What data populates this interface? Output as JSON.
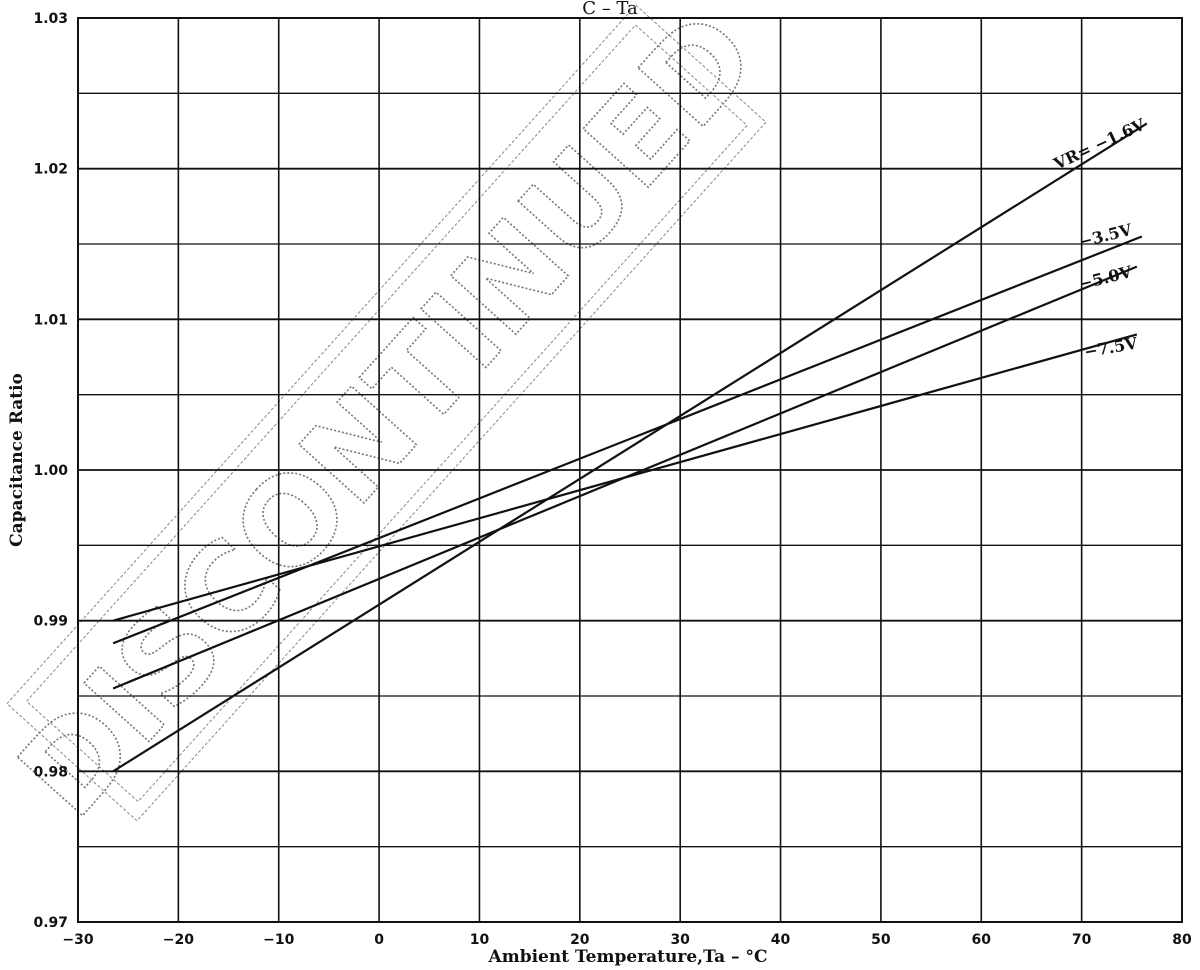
{
  "chart_data": {
    "type": "line",
    "title": "C – Ta",
    "xlabel": "Ambient Temperature,Ta – °C",
    "ylabel": "Capacitance Ratio",
    "xlim": [
      -30,
      80
    ],
    "ylim": [
      0.97,
      1.03
    ],
    "xticks": [
      "−30",
      "−20",
      "−10",
      "0",
      "10",
      "20",
      "30",
      "40",
      "50",
      "60",
      "70",
      "80"
    ],
    "yticks": [
      "0.97",
      "0.98",
      "0.99",
      "1.00",
      "1.01",
      "1.02",
      "1.03"
    ],
    "grid": true,
    "series": [
      {
        "name": "VR= −1.6V",
        "x": [
          -26.5,
          76.5
        ],
        "y": [
          0.98,
          1.023
        ]
      },
      {
        "name": "−3.5V",
        "x": [
          -26.5,
          76.0
        ],
        "y": [
          0.9885,
          1.0155
        ]
      },
      {
        "name": "−5.0V",
        "x": [
          -26.5,
          75.5
        ],
        "y": [
          0.9855,
          1.0135
        ]
      },
      {
        "name": "−7.5V",
        "x": [
          -26.5,
          75.5
        ],
        "y": [
          0.99,
          1.009
        ]
      }
    ]
  },
  "watermark": {
    "text": "DISCONTINUED"
  }
}
